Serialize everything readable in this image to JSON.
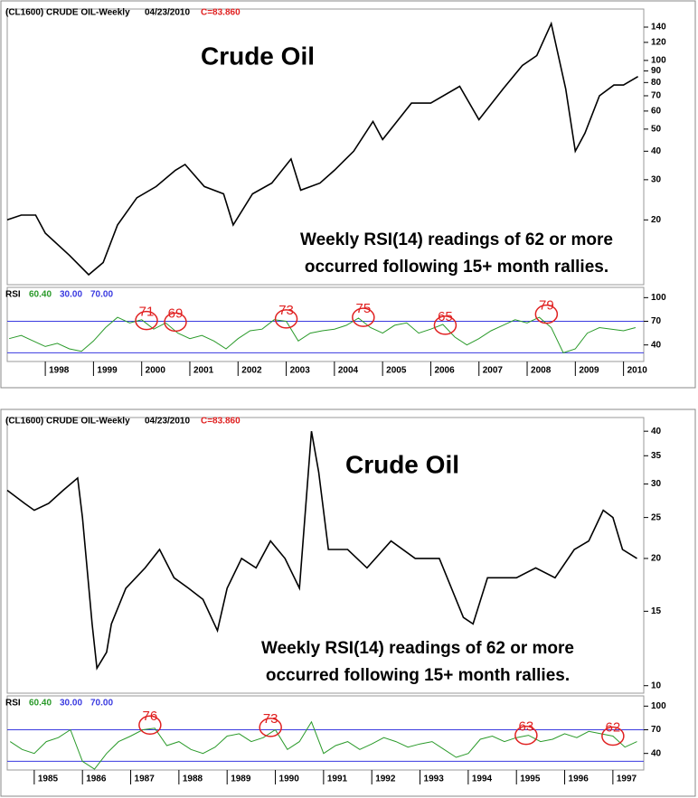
{
  "chart_data": [
    {
      "type": "line",
      "header": {
        "symbol": "(CL1600) CRUDE OIL-Weekly",
        "date": "04/23/2010",
        "close": "C=83.860"
      },
      "title": "Crude Oil",
      "annotation": [
        "Weekly RSI(14) readings of 62 or more",
        "occurred following 15+ month rallies."
      ],
      "log_scale": true,
      "xlim": [
        1997.21,
        2010.42
      ],
      "xticks": [
        1998,
        1999,
        2000,
        2001,
        2002,
        2003,
        2004,
        2005,
        2006,
        2007,
        2008,
        2009,
        2010
      ],
      "ylim": [
        10.4,
        168
      ],
      "yticks": [
        140,
        120,
        100,
        90,
        80,
        70,
        60,
        50,
        40,
        30,
        20
      ],
      "price": {
        "color": "#000000",
        "x": [
          1997.21,
          1997.5,
          1997.8,
          1998.0,
          1998.5,
          1998.9,
          1999.2,
          1999.5,
          1999.9,
          2000.3,
          2000.7,
          2000.9,
          2001.3,
          2001.7,
          2001.9,
          2002.3,
          2002.7,
          2003.1,
          2003.3,
          2003.7,
          2004.0,
          2004.4,
          2004.8,
          2005.0,
          2005.6,
          2006.0,
          2006.6,
          2007.0,
          2007.5,
          2007.9,
          2008.2,
          2008.5,
          2008.8,
          2009.0,
          2009.2,
          2009.5,
          2009.8,
          2010.0,
          2010.3
        ],
        "values": [
          20,
          21,
          21,
          17.5,
          14,
          11.5,
          13,
          19,
          25,
          28,
          33,
          35,
          28,
          26,
          19,
          26,
          29,
          37,
          27,
          29,
          33,
          40,
          54,
          45,
          65,
          65,
          77,
          55,
          75,
          95,
          105,
          145,
          75,
          40,
          48,
          70,
          78,
          78,
          85
        ]
      },
      "rsi": {
        "color": "#2a9a2a",
        "ylim": [
          19,
          113
        ],
        "yticks": [
          100,
          70,
          40
        ],
        "legend": {
          "name": "RSI",
          "current": {
            "value": 60.4,
            "label": "60.40"
          }
        },
        "bands": [
          {
            "value": 30,
            "label": "30.00",
            "color": "#3a3ae0"
          },
          {
            "value": 70,
            "label": "70.00",
            "color": "#3a3ae0"
          }
        ],
        "x": [
          1997.25,
          1997.5,
          1997.75,
          1998,
          1998.25,
          1998.5,
          1998.75,
          1999,
          1999.25,
          1999.5,
          1999.75,
          2000,
          2000.25,
          2000.5,
          2000.75,
          2001,
          2001.25,
          2001.5,
          2001.75,
          2002,
          2002.25,
          2002.5,
          2002.75,
          2003,
          2003.25,
          2003.5,
          2003.75,
          2004,
          2004.25,
          2004.5,
          2004.75,
          2005,
          2005.25,
          2005.5,
          2005.75,
          2006,
          2006.25,
          2006.5,
          2006.75,
          2007,
          2007.25,
          2007.5,
          2007.75,
          2008,
          2008.25,
          2008.5,
          2008.75,
          2009,
          2009.25,
          2009.5,
          2009.75,
          2010,
          2010.25
        ],
        "values": [
          48,
          52,
          45,
          38,
          42,
          35,
          32,
          45,
          62,
          75,
          68,
          72,
          60,
          68,
          55,
          48,
          52,
          45,
          35,
          48,
          58,
          60,
          72,
          70,
          45,
          55,
          58,
          60,
          65,
          74,
          62,
          55,
          65,
          68,
          55,
          60,
          66,
          50,
          40,
          48,
          58,
          65,
          72,
          68,
          75,
          62,
          30,
          35,
          55,
          62,
          60,
          58,
          62
        ],
        "marked": [
          {
            "x": 2000.1,
            "value": 71
          },
          {
            "x": 2000.7,
            "value": 69
          },
          {
            "x": 2003.0,
            "value": 73
          },
          {
            "x": 2004.6,
            "value": 75
          },
          {
            "x": 2006.3,
            "value": 65
          },
          {
            "x": 2008.4,
            "value": 79
          }
        ],
        "marked_color": "#e02020"
      }
    },
    {
      "type": "line",
      "header": {
        "symbol": "(CL1600) CRUDE OIL-Weekly",
        "date": "04/23/2010",
        "close": "C=83.860"
      },
      "title": "Crude Oil",
      "annotation": [
        "Weekly RSI(14) readings of 62 or more",
        "occurred following 15+ month rallies."
      ],
      "log_scale": true,
      "xlim": [
        1984.44,
        1997.64
      ],
      "xticks": [
        1985,
        1986,
        1987,
        1988,
        1989,
        1990,
        1991,
        1992,
        1993,
        1994,
        1995,
        1996,
        1997
      ],
      "ylim": [
        9.6,
        43.1
      ],
      "yticks": [
        40,
        35,
        30,
        25,
        20,
        15,
        10
      ],
      "price": {
        "color": "#000000",
        "x": [
          1984.44,
          1984.8,
          1985.0,
          1985.3,
          1985.6,
          1985.9,
          1986.0,
          1986.2,
          1986.3,
          1986.5,
          1986.6,
          1986.9,
          1987.3,
          1987.6,
          1987.9,
          1988.2,
          1988.5,
          1988.8,
          1989.0,
          1989.3,
          1989.6,
          1989.9,
          1990.2,
          1990.5,
          1990.75,
          1990.9,
          1991.1,
          1991.5,
          1991.9,
          1992.4,
          1992.9,
          1993.4,
          1993.9,
          1994.1,
          1994.4,
          1994.7,
          1995.0,
          1995.4,
          1995.8,
          1996.2,
          1996.5,
          1996.8,
          1997.0,
          1997.2,
          1997.5
        ],
        "values": [
          29,
          27,
          26,
          27,
          29,
          31,
          25,
          14,
          11,
          12,
          14,
          17,
          19,
          21,
          18,
          17,
          16,
          13.5,
          17,
          20,
          19,
          22,
          20,
          17,
          40,
          32,
          21,
          21,
          19,
          22,
          20,
          20,
          14.5,
          14,
          18,
          18,
          18,
          19,
          18,
          21,
          22,
          26,
          25,
          21,
          20
        ]
      },
      "rsi": {
        "color": "#2a9a2a",
        "ylim": [
          19,
          113
        ],
        "yticks": [
          100,
          70,
          40
        ],
        "legend": {
          "name": "RSI",
          "current": {
            "value": 60.4,
            "label": "60.40"
          }
        },
        "bands": [
          {
            "value": 30,
            "label": "30.00",
            "color": "#3a3ae0"
          },
          {
            "value": 70,
            "label": "70.00",
            "color": "#3a3ae0"
          }
        ],
        "x": [
          1984.5,
          1984.75,
          1985,
          1985.25,
          1985.5,
          1985.75,
          1986,
          1986.25,
          1986.5,
          1986.75,
          1987,
          1987.25,
          1987.5,
          1987.75,
          1988,
          1988.25,
          1988.5,
          1988.75,
          1989,
          1989.25,
          1989.5,
          1989.75,
          1990,
          1990.25,
          1990.5,
          1990.75,
          1991,
          1991.25,
          1991.5,
          1991.75,
          1992,
          1992.25,
          1992.5,
          1992.75,
          1993,
          1993.25,
          1993.5,
          1993.75,
          1994,
          1994.25,
          1994.5,
          1994.75,
          1995,
          1995.25,
          1995.5,
          1995.75,
          1996,
          1996.25,
          1996.5,
          1996.75,
          1997,
          1997.25,
          1997.5
        ],
        "values": [
          55,
          45,
          40,
          55,
          60,
          70,
          30,
          20,
          40,
          55,
          62,
          70,
          72,
          50,
          55,
          45,
          40,
          48,
          62,
          65,
          55,
          60,
          70,
          45,
          55,
          80,
          40,
          50,
          55,
          45,
          52,
          60,
          55,
          48,
          52,
          55,
          45,
          35,
          40,
          58,
          62,
          55,
          60,
          63,
          55,
          58,
          65,
          60,
          68,
          65,
          62,
          48,
          55
        ],
        "marked": [
          {
            "x": 1987.4,
            "value": 76
          },
          {
            "x": 1989.9,
            "value": 73
          },
          {
            "x": 1995.2,
            "value": 63
          },
          {
            "x": 1997.0,
            "value": 62
          }
        ],
        "marked_color": "#e02020"
      }
    }
  ]
}
